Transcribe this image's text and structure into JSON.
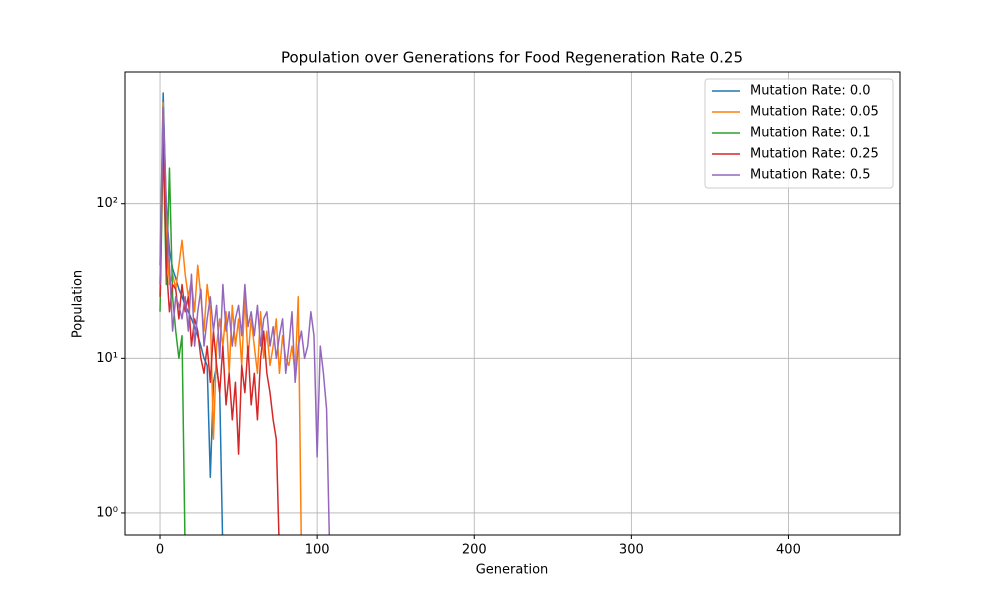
{
  "chart_data": {
    "type": "line",
    "title": "Population over Generations for Food Regeneration Rate 0.25",
    "x_label": "Generation",
    "y_label": "Population",
    "x": [
      0,
      2,
      4,
      6,
      8,
      10,
      12,
      14,
      16,
      18,
      20,
      22,
      24,
      26,
      28,
      30,
      32,
      34,
      36,
      38,
      40,
      42,
      44,
      46,
      48,
      50,
      52,
      54,
      56,
      58,
      60,
      62,
      64,
      66,
      68,
      70,
      72,
      74,
      76,
      78,
      80,
      82,
      84,
      86,
      88,
      90,
      92,
      94,
      96,
      98,
      100,
      102,
      104,
      106,
      108
    ],
    "series": [
      {
        "name": "Mutation Rate: 0.0",
        "color": "#1f77b4",
        "values": [
          40,
          520,
          90,
          50,
          38,
          33,
          28,
          25,
          22,
          20,
          18,
          16,
          14,
          12,
          10,
          9,
          1.7,
          7,
          9,
          6,
          0,
          null,
          null,
          null,
          null,
          null,
          null,
          null,
          null,
          null,
          null,
          null,
          null,
          null,
          null,
          null,
          null,
          null,
          null,
          null,
          null,
          null,
          null,
          null,
          null,
          null,
          null,
          null,
          null,
          null,
          null,
          null,
          null,
          null,
          null
        ]
      },
      {
        "name": "Mutation Rate: 0.05",
        "color": "#ff7f0e",
        "values": [
          30,
          450,
          60,
          30,
          35,
          28,
          40,
          58,
          35,
          25,
          32,
          20,
          40,
          25,
          15,
          30,
          20,
          3,
          12,
          18,
          12,
          20,
          8,
          22,
          12,
          18,
          9,
          25,
          10,
          18,
          12,
          8,
          20,
          10,
          15,
          9,
          12,
          18,
          8,
          14,
          10,
          9,
          12,
          8,
          25,
          0,
          null,
          null,
          null,
          null,
          null,
          null,
          null,
          null,
          null
        ]
      },
      {
        "name": "Mutation Rate: 0.1",
        "color": "#2ca02c",
        "values": [
          20,
          250,
          30,
          170,
          25,
          15,
          10,
          14,
          0,
          null,
          null,
          null,
          null,
          null,
          null,
          null,
          null,
          null,
          null,
          null,
          null,
          null,
          null,
          null,
          null,
          null,
          null,
          null,
          null,
          null,
          null,
          null,
          null,
          null,
          null,
          null,
          null,
          null,
          null,
          null,
          null,
          null,
          null,
          null,
          null,
          null,
          null,
          null,
          null,
          null,
          null,
          null,
          null,
          null,
          null
        ]
      },
      {
        "name": "Mutation Rate: 0.25",
        "color": "#d62728",
        "values": [
          25,
          300,
          40,
          20,
          30,
          28,
          18,
          30,
          20,
          25,
          12,
          18,
          15,
          10,
          8,
          12,
          7,
          15,
          9,
          6,
          12,
          5,
          8,
          4,
          7,
          2.4,
          9,
          6,
          12,
          5,
          8,
          4,
          10,
          15,
          8,
          6,
          4,
          3,
          0,
          null,
          null,
          null,
          null,
          null,
          null,
          null,
          null,
          null,
          null,
          null,
          null,
          null,
          null,
          null,
          null
        ]
      },
      {
        "name": "Mutation Rate: 0.5",
        "color": "#9467bd",
        "values": [
          30,
          420,
          100,
          40,
          15,
          25,
          22,
          18,
          25,
          15,
          35,
          12,
          20,
          28,
          12,
          18,
          25,
          15,
          22,
          10,
          30,
          15,
          20,
          12,
          18,
          22,
          14,
          30,
          16,
          20,
          14,
          22,
          12,
          18,
          20,
          12,
          16,
          10,
          14,
          18,
          8,
          12,
          20,
          7,
          12,
          15,
          10,
          12,
          20,
          14,
          2.3,
          12,
          8,
          4.7,
          0
        ]
      }
    ],
    "xlim": [
      -22.3,
      471
    ],
    "xticks": [
      0,
      100,
      200,
      300,
      400
    ],
    "ylim": [
      0.72,
      711
    ],
    "ylog": true,
    "yticks": [
      {
        "value": 1,
        "label": "10⁰"
      },
      {
        "value": 10,
        "label": "10¹"
      },
      {
        "value": 100,
        "label": "10²"
      }
    ],
    "grid": true,
    "legend": "upper right"
  }
}
